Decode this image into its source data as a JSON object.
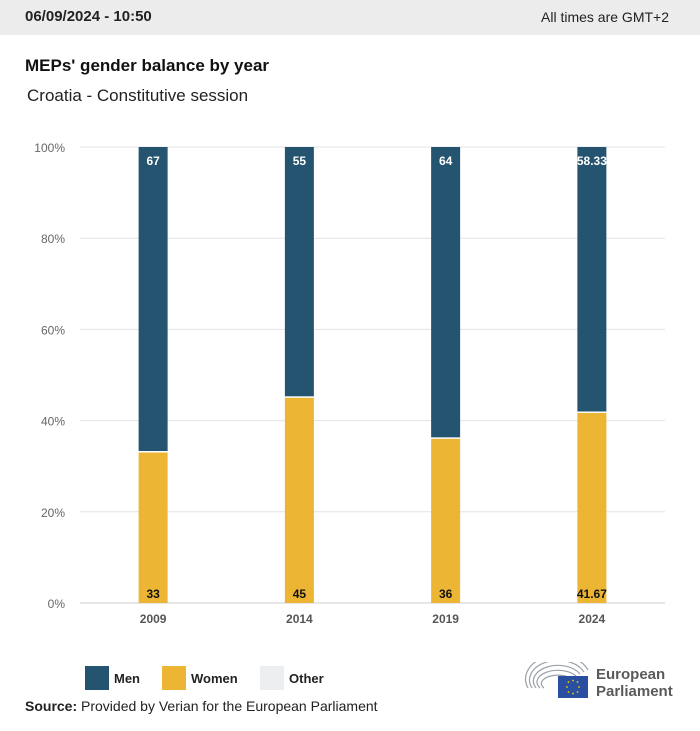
{
  "header": {
    "timestamp": "06/09/2024 - 10:50",
    "timezone_note": "All times are GMT+2"
  },
  "title": "MEPs' gender balance by year",
  "subtitle": "Croatia - Constitutive session",
  "colors": {
    "men": "#24546f",
    "women": "#ecb534",
    "other": "#eceef0",
    "grid": "#e3e3e3"
  },
  "legend": [
    {
      "key": "men",
      "label": "Men"
    },
    {
      "key": "women",
      "label": "Women"
    },
    {
      "key": "other",
      "label": "Other"
    }
  ],
  "source": {
    "label": "Source:",
    "text": "Provided by Verian for the European Parliament"
  },
  "logo": {
    "line1": "European",
    "line2": "Parliament"
  },
  "chart_data": {
    "type": "bar",
    "stacked": true,
    "title": "MEPs' gender balance by year",
    "subtitle": "Croatia - Constitutive session",
    "categories": [
      "2009",
      "2014",
      "2019",
      "2024"
    ],
    "series": [
      {
        "name": "Women",
        "values": [
          33,
          45,
          36,
          41.67
        ],
        "labels": [
          "33",
          "45",
          "36",
          "41.67"
        ]
      },
      {
        "name": "Men",
        "values": [
          67,
          55,
          64,
          58.33
        ],
        "labels": [
          "67",
          "55",
          "64",
          "58.33"
        ]
      },
      {
        "name": "Other",
        "values": [
          0,
          0,
          0,
          0
        ]
      }
    ],
    "yticks": [
      "0%",
      "20%",
      "40%",
      "60%",
      "80%",
      "100%"
    ],
    "ylim": [
      0,
      100
    ],
    "xlabel": "",
    "ylabel": "",
    "grid": true,
    "legend_position": "bottom-left"
  }
}
